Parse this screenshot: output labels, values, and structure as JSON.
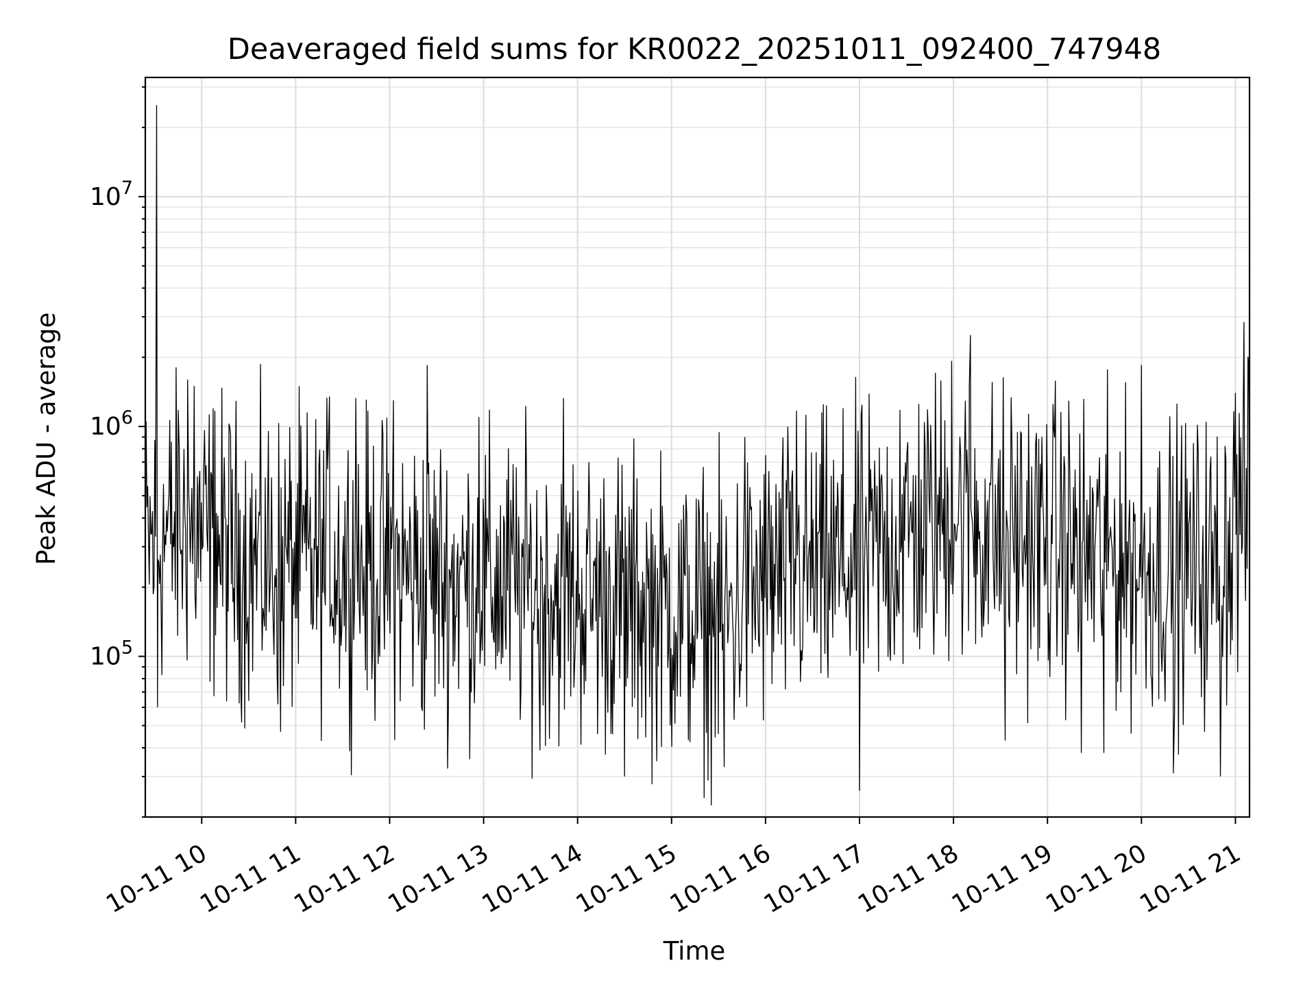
{
  "chart_data": {
    "type": "line",
    "title": "Deaveraged field sums for KR0022_20251011_092400_747948",
    "xlabel": "Time",
    "ylabel": "Peak ADU - average",
    "yscale": "log",
    "ylim": [
      20000,
      33000000
    ],
    "xlim_hours": [
      9.4,
      21.15
    ],
    "grid": true,
    "x_ticks": [
      {
        "label": "10-11 10",
        "hour": 10
      },
      {
        "label": "10-11 11",
        "hour": 11
      },
      {
        "label": "10-11 12",
        "hour": 12
      },
      {
        "label": "10-11 13",
        "hour": 13
      },
      {
        "label": "10-11 14",
        "hour": 14
      },
      {
        "label": "10-11 15",
        "hour": 15
      },
      {
        "label": "10-11 16",
        "hour": 16
      },
      {
        "label": "10-11 17",
        "hour": 17
      },
      {
        "label": "10-11 18",
        "hour": 18
      },
      {
        "label": "10-11 19",
        "hour": 19
      },
      {
        "label": "10-11 20",
        "hour": 20
      },
      {
        "label": "10-11 21",
        "hour": 21
      }
    ],
    "y_ticks": [
      {
        "base": "10",
        "exp": "5",
        "value": 100000
      },
      {
        "base": "10",
        "exp": "6",
        "value": 1000000
      },
      {
        "base": "10",
        "exp": "7",
        "value": 10000000
      }
    ],
    "trend": [
      {
        "hour": 9.4,
        "value": 300000
      },
      {
        "hour": 9.8,
        "value": 360000
      },
      {
        "hour": 10.5,
        "value": 260000
      },
      {
        "hour": 11.5,
        "value": 250000
      },
      {
        "hour": 12.5,
        "value": 220000
      },
      {
        "hour": 13.5,
        "value": 200000
      },
      {
        "hour": 14.5,
        "value": 175000
      },
      {
        "hour": 15.5,
        "value": 140000
      },
      {
        "hour": 16.0,
        "value": 210000
      },
      {
        "hour": 17.0,
        "value": 260000
      },
      {
        "hour": 17.5,
        "value": 330000
      },
      {
        "hour": 18.0,
        "value": 420000
      },
      {
        "hour": 18.5,
        "value": 340000
      },
      {
        "hour": 19.0,
        "value": 320000
      },
      {
        "hour": 20.0,
        "value": 250000
      },
      {
        "hour": 20.8,
        "value": 240000
      },
      {
        "hour": 21.15,
        "value": 520000
      }
    ],
    "peaks": [
      {
        "hour": 9.52,
        "value": 25000000
      },
      {
        "hour": 9.75,
        "value": 1180000
      },
      {
        "hour": 9.85,
        "value": 1600000
      },
      {
        "hour": 9.92,
        "value": 1500000
      },
      {
        "hour": 10.14,
        "value": 1170000
      },
      {
        "hour": 11.36,
        "value": 1350000
      },
      {
        "hour": 11.64,
        "value": 1330000
      },
      {
        "hour": 12.04,
        "value": 1300000
      },
      {
        "hour": 12.4,
        "value": 1850000
      },
      {
        "hour": 12.95,
        "value": 1100000
      },
      {
        "hour": 13.85,
        "value": 1330000
      },
      {
        "hour": 15.78,
        "value": 900000
      },
      {
        "hour": 16.33,
        "value": 1170000
      },
      {
        "hour": 17.43,
        "value": 1180000
      },
      {
        "hour": 17.98,
        "value": 1930000
      },
      {
        "hour": 18.18,
        "value": 2500000
      },
      {
        "hour": 20.0,
        "value": 1850000
      },
      {
        "hour": 21.0,
        "value": 1400000
      }
    ],
    "troughs": [
      {
        "hour": 9.53,
        "value": 60000
      },
      {
        "hour": 10.84,
        "value": 47000
      },
      {
        "hour": 12.37,
        "value": 48000
      },
      {
        "hour": 13.6,
        "value": 39000
      },
      {
        "hour": 14.5,
        "value": 30000
      },
      {
        "hour": 15.56,
        "value": 33000
      },
      {
        "hour": 17.0,
        "value": 26000
      },
      {
        "hour": 18.55,
        "value": 43000
      },
      {
        "hour": 19.36,
        "value": 38000
      },
      {
        "hour": 19.6,
        "value": 38000
      },
      {
        "hour": 20.34,
        "value": 31000
      },
      {
        "hour": 20.84,
        "value": 30000
      }
    ],
    "noise_log10_amplitude": 0.32,
    "sample_count": 1400
  }
}
